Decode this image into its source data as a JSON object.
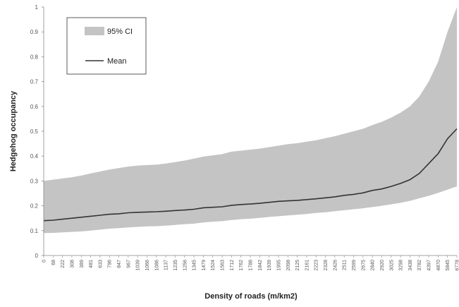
{
  "chart_data": {
    "type": "area",
    "title": "",
    "xlabel": "Density of roads (m/km2)",
    "ylabel": "Hedgehog occupancy",
    "ylim": [
      0,
      1
    ],
    "yticks": [
      "0",
      "0.1",
      "0.2",
      "0.3",
      "0.4",
      "0.5",
      "0.6",
      "0.7",
      "0.8",
      "0.9",
      "1"
    ],
    "x_tick_labels": [
      "0",
      "68",
      "222",
      "308",
      "389",
      "481",
      "633",
      "796",
      "847",
      "967",
      "1039",
      "1066",
      "1086",
      "1137",
      "1235",
      "1256",
      "1345",
      "1479",
      "1524",
      "1563",
      "1712",
      "1762",
      "1788",
      "1842",
      "1939",
      "1995",
      "2098",
      "2125",
      "2161",
      "2223",
      "2328",
      "2426",
      "2511",
      "2599",
      "2675",
      "2840",
      "2920",
      "3025",
      "3298",
      "3438",
      "3782",
      "4397",
      "4870",
      "5845",
      "6778"
    ],
    "legend": {
      "position": "top-left",
      "items": [
        {
          "label": "95% CI",
          "kind": "band",
          "color": "#c4c4c4"
        },
        {
          "label": "Mean",
          "kind": "line",
          "color": "#333333"
        }
      ]
    },
    "series": [
      {
        "name": "Mean",
        "values": [
          0.14,
          0.142,
          0.146,
          0.15,
          0.154,
          0.158,
          0.162,
          0.166,
          0.168,
          0.172,
          0.174,
          0.175,
          0.176,
          0.178,
          0.181,
          0.183,
          0.186,
          0.192,
          0.194,
          0.196,
          0.202,
          0.205,
          0.207,
          0.21,
          0.214,
          0.218,
          0.22,
          0.222,
          0.225,
          0.228,
          0.232,
          0.236,
          0.242,
          0.246,
          0.252,
          0.262,
          0.268,
          0.278,
          0.29,
          0.305,
          0.33,
          0.37,
          0.41,
          0.47,
          0.51
        ]
      },
      {
        "name": "95% CI upper",
        "values": [
          0.3,
          0.305,
          0.31,
          0.315,
          0.322,
          0.33,
          0.338,
          0.346,
          0.352,
          0.358,
          0.362,
          0.364,
          0.366,
          0.37,
          0.376,
          0.382,
          0.39,
          0.398,
          0.403,
          0.408,
          0.418,
          0.422,
          0.426,
          0.43,
          0.436,
          0.442,
          0.448,
          0.452,
          0.458,
          0.464,
          0.472,
          0.48,
          0.49,
          0.5,
          0.51,
          0.525,
          0.538,
          0.555,
          0.575,
          0.6,
          0.64,
          0.7,
          0.78,
          0.9,
          1.0
        ]
      },
      {
        "name": "95% CI lower",
        "values": [
          0.09,
          0.091,
          0.093,
          0.095,
          0.097,
          0.1,
          0.104,
          0.108,
          0.11,
          0.113,
          0.115,
          0.117,
          0.118,
          0.12,
          0.123,
          0.126,
          0.128,
          0.133,
          0.136,
          0.138,
          0.143,
          0.146,
          0.148,
          0.151,
          0.155,
          0.158,
          0.161,
          0.164,
          0.167,
          0.171,
          0.174,
          0.178,
          0.182,
          0.186,
          0.19,
          0.195,
          0.2,
          0.206,
          0.212,
          0.22,
          0.23,
          0.24,
          0.252,
          0.265,
          0.278
        ]
      }
    ],
    "grid": false
  }
}
